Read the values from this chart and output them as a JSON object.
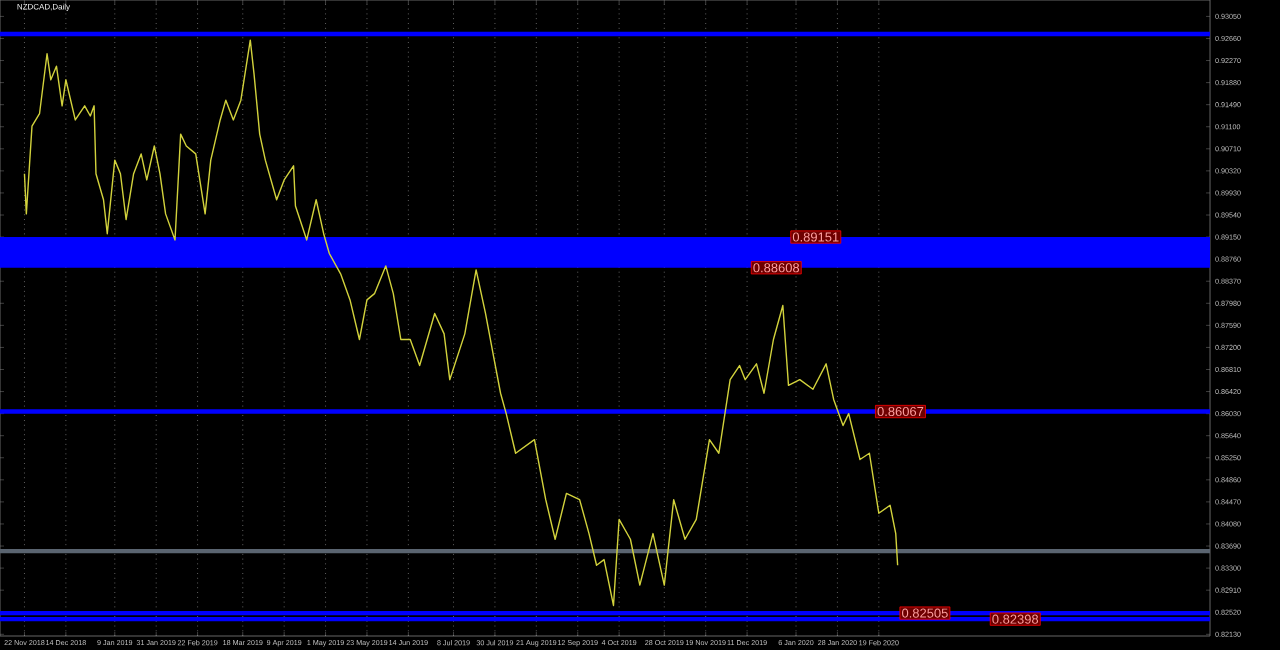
{
  "chart_data": {
    "type": "line",
    "title": "NZDCAD,Daily",
    "x": [
      "2018-11-22",
      "2018-11-23",
      "2018-11-26",
      "2018-11-30",
      "2018-12-04",
      "2018-12-06",
      "2018-12-09",
      "2018-12-12",
      "2018-12-14",
      "2018-12-19",
      "2018-12-24",
      "2018-12-27",
      "2018-12-29",
      "2018-12-30",
      "2019-01-03",
      "2019-01-05",
      "2019-01-09",
      "2019-01-12",
      "2019-01-15",
      "2019-01-19",
      "2019-01-23",
      "2019-01-26",
      "2019-01-30",
      "2019-02-02",
      "2019-02-05",
      "2019-02-10",
      "2019-02-13",
      "2019-02-16",
      "2019-02-21",
      "2019-02-26",
      "2019-03-01",
      "2019-03-06",
      "2019-03-09",
      "2019-03-13",
      "2019-03-17",
      "2019-03-22",
      "2019-03-24",
      "2019-03-27",
      "2019-03-30",
      "2019-04-05",
      "2019-04-09",
      "2019-04-14",
      "2019-04-15",
      "2019-04-21",
      "2019-04-26",
      "2019-04-30",
      "2019-05-03",
      "2019-05-09",
      "2019-05-14",
      "2019-05-19",
      "2019-05-23",
      "2019-05-27",
      "2019-06-02",
      "2019-06-06",
      "2019-06-10",
      "2019-06-15",
      "2019-06-20",
      "2019-06-28",
      "2019-07-03",
      "2019-07-06",
      "2019-07-14",
      "2019-07-20",
      "2019-07-25",
      "2019-07-29",
      "2019-08-02",
      "2019-08-05",
      "2019-08-10",
      "2019-08-20",
      "2019-08-26",
      "2019-08-31",
      "2019-09-06",
      "2019-09-13",
      "2019-09-18",
      "2019-09-22",
      "2019-09-26",
      "2019-10-01",
      "2019-10-04",
      "2019-10-10",
      "2019-10-15",
      "2019-10-22",
      "2019-10-28",
      "2019-11-02",
      "2019-11-08",
      "2019-11-14",
      "2019-11-21",
      "2019-11-26",
      "2019-12-02",
      "2019-12-07",
      "2019-12-10",
      "2019-12-16",
      "2019-12-20",
      "2019-12-25",
      "2019-12-30",
      "2020-01-02",
      "2020-01-08",
      "2020-01-15",
      "2020-01-22",
      "2020-01-26",
      "2020-01-31",
      "2020-02-03",
      "2020-02-09",
      "2020-02-14",
      "2020-02-19",
      "2020-02-25",
      "2020-02-28",
      "2020-02-29"
    ],
    "series": [
      {
        "color": "#d2d23c",
        "values": [
          0.9027,
          0.8956,
          0.9111,
          0.9133,
          0.9239,
          0.9193,
          0.9217,
          0.9147,
          0.9193,
          0.9122,
          0.9147,
          0.9129,
          0.9147,
          0.9027,
          0.8981,
          0.8921,
          0.9051,
          0.9027,
          0.8946,
          0.9027,
          0.9062,
          0.9016,
          0.9076,
          0.9027,
          0.8956,
          0.891,
          0.9097,
          0.9076,
          0.9062,
          0.8956,
          0.9051,
          0.9122,
          0.9157,
          0.9122,
          0.9157,
          0.9263,
          0.9203,
          0.9097,
          0.9051,
          0.8981,
          0.9016,
          0.9041,
          0.897,
          0.891,
          0.8981,
          0.8921,
          0.8886,
          0.885,
          0.8804,
          0.8734,
          0.8804,
          0.8815,
          0.8864,
          0.8815,
          0.8734,
          0.8734,
          0.8688,
          0.878,
          0.8744,
          0.8663,
          0.8744,
          0.8857,
          0.878,
          0.8709,
          0.8639,
          0.8603,
          0.8533,
          0.8557,
          0.8451,
          0.8381,
          0.8462,
          0.8451,
          0.8391,
          0.8335,
          0.8345,
          0.8264,
          0.8416,
          0.8381,
          0.83,
          0.8391,
          0.83,
          0.8451,
          0.8381,
          0.8416,
          0.8557,
          0.8533,
          0.8663,
          0.8688,
          0.8663,
          0.8691,
          0.8639,
          0.8734,
          0.8794,
          0.8653,
          0.8663,
          0.8646,
          0.8691,
          0.8628,
          0.8582,
          0.8603,
          0.8522,
          0.8533,
          0.8427,
          0.8441,
          0.8391,
          0.8335
        ]
      }
    ],
    "xlim": [
      "2018-11-09",
      "2020-08-13"
    ],
    "xticks": [
      {
        "value": "2018-11-22",
        "label": "22 Nov 2018"
      },
      {
        "value": "2018-12-14",
        "label": "14 Dec 2018"
      },
      {
        "value": "2019-01-09",
        "label": "9 Jan 2019"
      },
      {
        "value": "2019-01-31",
        "label": "31 Jan 2019"
      },
      {
        "value": "2019-02-22",
        "label": "22 Feb 2019"
      },
      {
        "value": "2019-03-18",
        "label": "18 Mar 2019"
      },
      {
        "value": "2019-04-09",
        "label": "9 Apr 2019"
      },
      {
        "value": "2019-05-01",
        "label": "1 May 2019"
      },
      {
        "value": "2019-05-23",
        "label": "23 May 2019"
      },
      {
        "value": "2019-06-14",
        "label": "14 Jun 2019"
      },
      {
        "value": "2019-07-08",
        "label": "8 Jul 2019"
      },
      {
        "value": "2019-07-30",
        "label": "30 Jul 2019"
      },
      {
        "value": "2019-08-21",
        "label": "21 Aug 2019"
      },
      {
        "value": "2019-09-12",
        "label": "12 Sep 2019"
      },
      {
        "value": "2019-10-04",
        "label": "4 Oct 2019"
      },
      {
        "value": "2019-10-28",
        "label": "28 Oct 2019"
      },
      {
        "value": "2019-11-19",
        "label": "19 Nov 2019"
      },
      {
        "value": "2019-12-11",
        "label": "11 Dec 2019"
      },
      {
        "value": "2020-01-06",
        "label": "6 Jan 2020"
      },
      {
        "value": "2020-01-28",
        "label": "28 Jan 2020"
      },
      {
        "value": "2020-02-19",
        "label": "19 Feb 2020"
      }
    ],
    "ylim": [
      0.821,
      0.9334
    ],
    "yticks": [
      {
        "value": 0.8213,
        "label": "0.82130"
      },
      {
        "value": 0.8252,
        "label": "0.82520"
      },
      {
        "value": 0.8291,
        "label": "0.82910"
      },
      {
        "value": 0.833,
        "label": "0.83300"
      },
      {
        "value": 0.8369,
        "label": "0.83690"
      },
      {
        "value": 0.8408,
        "label": "0.84080"
      },
      {
        "value": 0.8447,
        "label": "0.84470"
      },
      {
        "value": 0.8486,
        "label": "0.84860"
      },
      {
        "value": 0.8525,
        "label": "0.85250"
      },
      {
        "value": 0.8564,
        "label": "0.85640"
      },
      {
        "value": 0.8603,
        "label": "0.86030"
      },
      {
        "value": 0.8642,
        "label": "0.86420"
      },
      {
        "value": 0.8681,
        "label": "0.86810"
      },
      {
        "value": 0.872,
        "label": "0.87200"
      },
      {
        "value": 0.8759,
        "label": "0.87590"
      },
      {
        "value": 0.8798,
        "label": "0.87980"
      },
      {
        "value": 0.8837,
        "label": "0.88370"
      },
      {
        "value": 0.8876,
        "label": "0.88760"
      },
      {
        "value": 0.8915,
        "label": "0.89150"
      },
      {
        "value": 0.8954,
        "label": "0.89540"
      },
      {
        "value": 0.8993,
        "label": "0.89930"
      },
      {
        "value": 0.9032,
        "label": "0.90320"
      },
      {
        "value": 0.9071,
        "label": "0.90710"
      },
      {
        "value": 0.911,
        "label": "0.91100"
      },
      {
        "value": 0.9149,
        "label": "0.91490"
      },
      {
        "value": 0.9188,
        "label": "0.91880"
      },
      {
        "value": 0.9227,
        "label": "0.92270"
      },
      {
        "value": 0.9266,
        "label": "0.92660"
      },
      {
        "value": 0.9305,
        "label": "0.93050"
      }
    ],
    "grid": "x",
    "bands": [
      {
        "axis": "y",
        "from": 0.88608,
        "to": 0.89151,
        "color": "#0000ff"
      }
    ],
    "ref_lines": [
      {
        "axis": "y",
        "value": 0.9274,
        "color": "#0000ff"
      },
      {
        "axis": "y",
        "value": 0.86067,
        "color": "#0000ff"
      },
      {
        "axis": "y",
        "value": 0.82505,
        "color": "#0000ff"
      },
      {
        "axis": "y",
        "value": 0.82398,
        "color": "#0000ff"
      },
      {
        "axis": "y",
        "value": 0.836,
        "color": "#5a6470"
      }
    ],
    "annotations": [
      {
        "text": "0.89151",
        "x": "2020-01-03",
        "y": 0.89151
      },
      {
        "text": "0.88608",
        "x": "2019-12-13",
        "y": 0.88608
      },
      {
        "text": "0.86067",
        "x": "2020-02-17",
        "y": 0.86067
      },
      {
        "text": "0.82505",
        "x": "2020-03-01",
        "y": 0.82505
      },
      {
        "text": "0.82398",
        "x": "2020-04-18",
        "y": 0.82398
      }
    ]
  }
}
